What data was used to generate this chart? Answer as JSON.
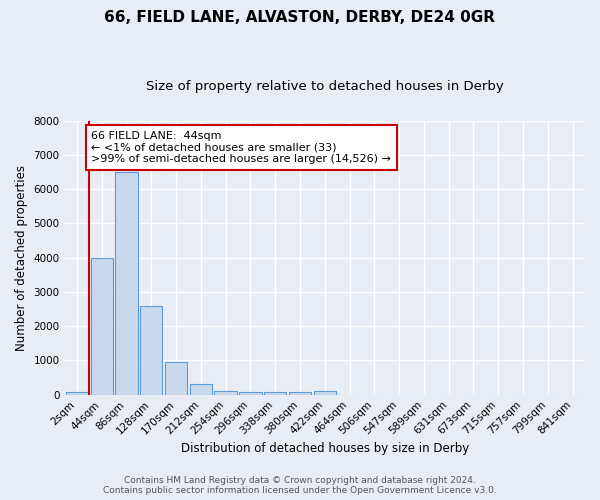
{
  "title1": "66, FIELD LANE, ALVASTON, DERBY, DE24 0GR",
  "title2": "Size of property relative to detached houses in Derby",
  "xlabel": "Distribution of detached houses by size in Derby",
  "ylabel": "Number of detached properties",
  "bar_labels": [
    "2sqm",
    "44sqm",
    "86sqm",
    "128sqm",
    "170sqm",
    "212sqm",
    "254sqm",
    "296sqm",
    "338sqm",
    "380sqm",
    "422sqm",
    "464sqm",
    "506sqm",
    "547sqm",
    "589sqm",
    "631sqm",
    "673sqm",
    "715sqm",
    "757sqm",
    "799sqm",
    "841sqm"
  ],
  "bar_heights": [
    70,
    4000,
    6500,
    2600,
    950,
    310,
    120,
    90,
    90,
    90,
    100,
    0,
    0,
    0,
    0,
    0,
    0,
    0,
    0,
    0,
    0
  ],
  "bar_color": "#c9d9ed",
  "bar_edge_color": "#5b9bd5",
  "annotation_line1": "66 FIELD LANE:  44sqm",
  "annotation_line2": "← <1% of detached houses are smaller (33)",
  "annotation_line3": ">99% of semi-detached houses are larger (14,526) →",
  "annotation_box_color": "white",
  "annotation_box_edge": "#cc0000",
  "ylim": [
    0,
    8000
  ],
  "yticks": [
    0,
    1000,
    2000,
    3000,
    4000,
    5000,
    6000,
    7000,
    8000
  ],
  "footer1": "Contains HM Land Registry data © Crown copyright and database right 2024.",
  "footer2": "Contains public sector information licensed under the Open Government Licence v3.0.",
  "bg_color": "#e8edf5",
  "plot_bg_color": "#e8edf5",
  "grid_color": "white",
  "red_line_color": "#cc0000",
  "title1_fontsize": 11,
  "title2_fontsize": 9.5,
  "xlabel_fontsize": 8.5,
  "ylabel_fontsize": 8.5,
  "tick_fontsize": 7.5,
  "footer_fontsize": 6.5,
  "annot_fontsize": 8
}
